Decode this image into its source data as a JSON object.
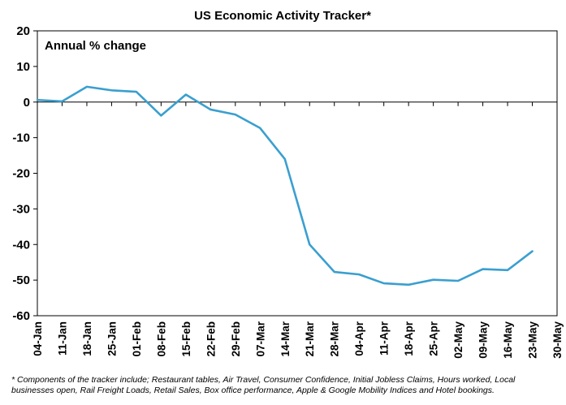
{
  "chart_data": {
    "type": "line",
    "title": "US Economic Activity Tracker*",
    "inner_label": "Annual % change",
    "xlabel": "",
    "ylabel": "",
    "ylim": [
      -60,
      20
    ],
    "yticks": [
      20,
      10,
      0,
      -10,
      -20,
      -30,
      -40,
      -50,
      -60
    ],
    "ytick_labels": [
      "20",
      "10",
      "0",
      "-10",
      "-20",
      "-30",
      "-40",
      "-50",
      "-60"
    ],
    "categories": [
      "04-Jan",
      "11-Jan",
      "18-Jan",
      "25-Jan",
      "01-Feb",
      "08-Feb",
      "15-Feb",
      "22-Feb",
      "29-Feb",
      "07-Mar",
      "14-Mar",
      "21-Mar",
      "28-Mar",
      "04-Apr",
      "11-Apr",
      "18-Apr",
      "25-Apr",
      "02-May",
      "09-May",
      "16-May",
      "23-May",
      "30-May"
    ],
    "series": [
      {
        "values": [
          0.6,
          0.2,
          4.3,
          3.3,
          2.9,
          -3.8,
          2.1,
          -2.1,
          -3.5,
          -7.3,
          -16.0,
          -40.0,
          -47.7,
          -48.4,
          -50.9,
          -51.3,
          -49.9,
          -50.2,
          -46.9,
          -47.2,
          -41.9,
          null
        ]
      }
    ],
    "line_color": "#3a9fd0",
    "grid": false,
    "legend": "none",
    "footnote": "* Components of the tracker include; Restaurant tables, Air Travel, Consumer Confidence, Initial Jobless Claims, Hours worked, Local businesses open, Rail Freight Loads, Retail Sales, Box office performance, Apple & Google Mobility Indices and Hotel bookings."
  }
}
